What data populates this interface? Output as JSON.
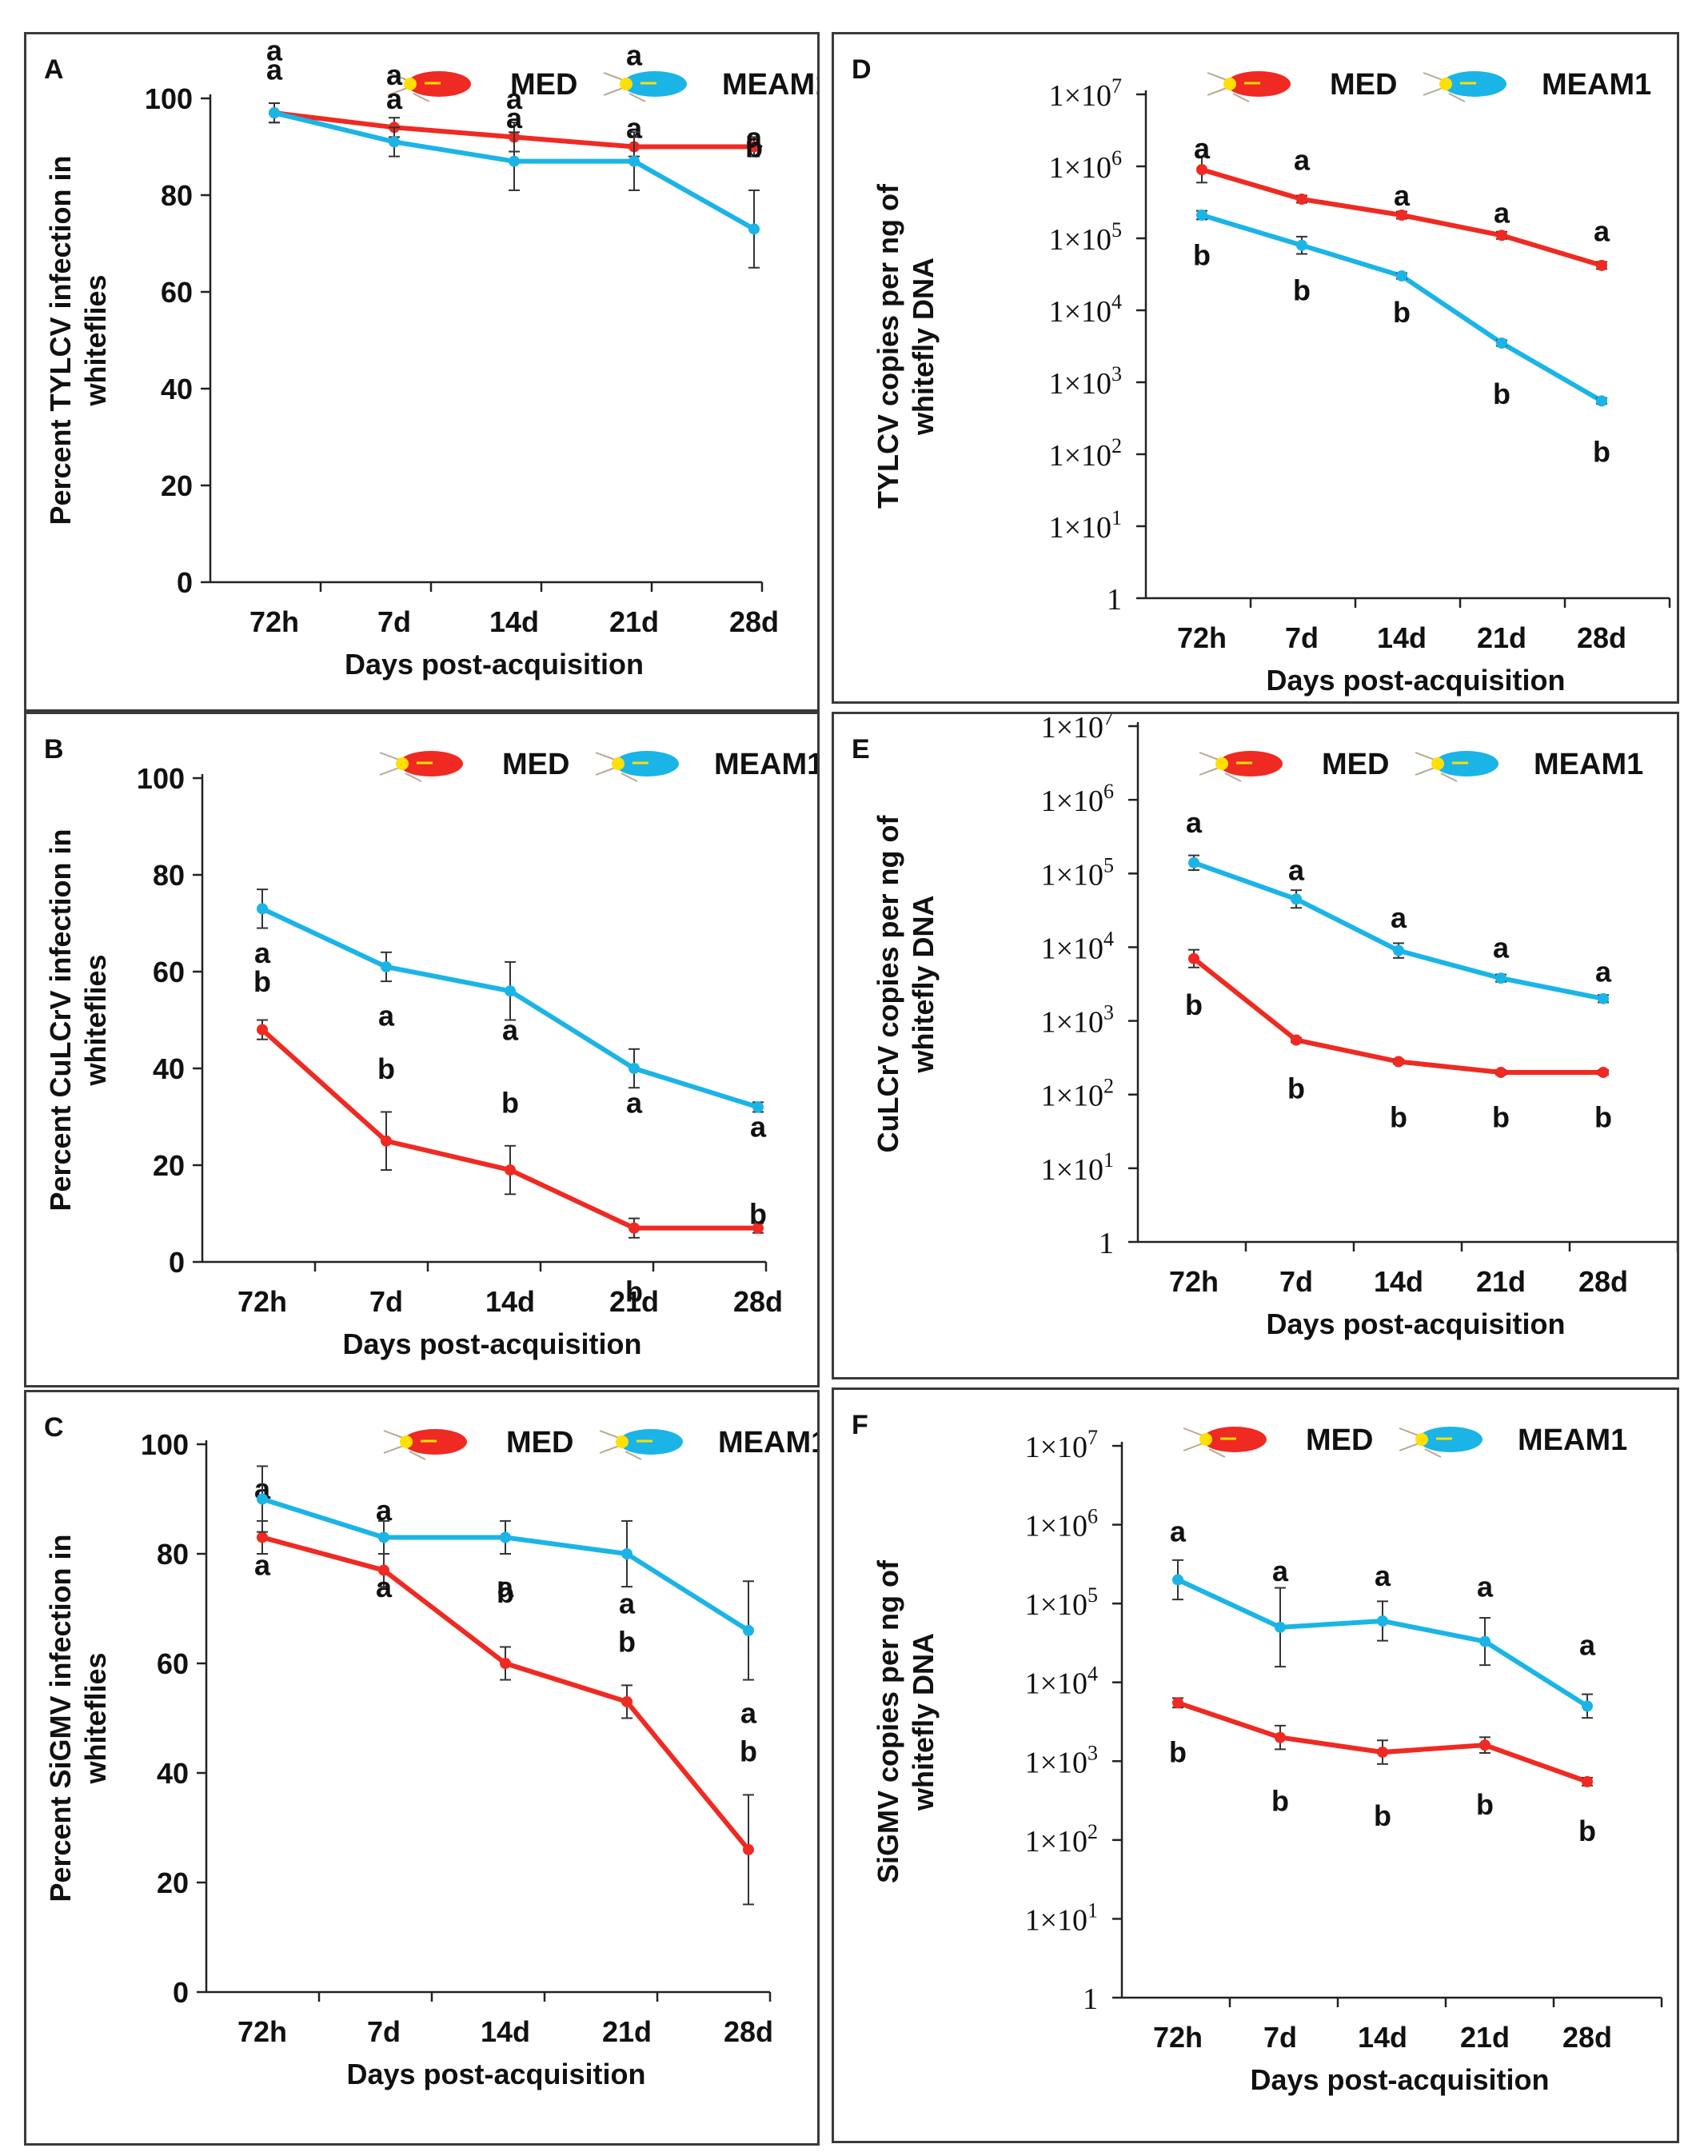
{
  "colors": {
    "med": "#ef2a22",
    "meam1": "#1bb4e6",
    "axis": "#222222",
    "text": "#111111",
    "bug_head": "#ffe000"
  },
  "legend": {
    "med": "MED",
    "meam1": "MEAM1"
  },
  "chart_data": [
    {
      "panel": "A",
      "type": "line",
      "scale": "linear",
      "title": "",
      "xlabel": "Days post-acquisition",
      "ylabel_lines": [
        "Percent  TYLCV infection in",
        "whiteflies"
      ],
      "ylim": [
        0,
        100
      ],
      "yticks": [
        "0",
        "20",
        "40",
        "60",
        "80",
        "100"
      ],
      "categories": [
        "72h",
        "7d",
        "14d",
        "21d",
        "28d"
      ],
      "series": [
        {
          "name": "MED",
          "values": [
            97,
            94,
            92,
            90,
            90
          ],
          "errors": [
            2,
            2,
            3,
            2,
            2
          ],
          "letters": [
            "a",
            "a",
            "a",
            "a",
            "a"
          ],
          "letter_offsets": [
            -9,
            -6,
            -4,
            -4,
            -2
          ]
        },
        {
          "name": "MEAM1",
          "values": [
            97,
            91,
            87,
            87,
            73
          ],
          "errors": [
            2,
            3,
            6,
            6,
            8
          ],
          "letters": [
            "a",
            "a",
            "a",
            "a",
            "b"
          ],
          "letter_offsets": [
            -13,
            -14,
            -13,
            -22,
            -17
          ]
        }
      ]
    },
    {
      "panel": "D",
      "type": "line",
      "scale": "log10",
      "title": "",
      "xlabel": "Days post-acquisition",
      "ylabel_lines": [
        "TYLCV copies per ng of",
        "whitefly DNA"
      ],
      "ylim_exp": [
        0,
        7
      ],
      "yticks": [
        "1",
        "1×10",
        "1×10",
        "1×10",
        "1×10",
        "1×10",
        "1×10",
        "1×10"
      ],
      "ytick_exps": [
        "",
        "1",
        "2",
        "3",
        "4",
        "5",
        "6",
        "7"
      ],
      "categories": [
        "72h",
        "7d",
        "14d",
        "21d",
        "28d"
      ],
      "series": [
        {
          "name": "MED",
          "values": [
            900000,
            350000,
            210000,
            110000,
            42000
          ],
          "errors": [
            0.18,
            0.05,
            0.05,
            0.05,
            0.05
          ],
          "letters": [
            "a",
            "a",
            "a",
            "a",
            "a"
          ],
          "letter_offsets": [
            0.3,
            0.55,
            0.28,
            0.32,
            0.48
          ]
        },
        {
          "name": "MEAM1",
          "values": [
            210000,
            80000,
            30000,
            3500,
            550
          ],
          "errors": [
            0.06,
            0.12,
            0.04,
            0.04,
            0.04
          ],
          "letters": [
            "b",
            "b",
            "b",
            "b",
            "b"
          ],
          "letter_offsets": [
            -0.55,
            -0.62,
            -0.5,
            -0.7,
            -0.7
          ]
        }
      ]
    },
    {
      "panel": "B",
      "type": "line",
      "scale": "linear",
      "title": "",
      "xlabel": "Days post-acquisition",
      "ylabel_lines": [
        "Percent CuLCrV infection in",
        "whiteflies"
      ],
      "ylim": [
        0,
        100
      ],
      "yticks": [
        "0",
        "20",
        "40",
        "60",
        "80",
        "100"
      ],
      "categories": [
        "72h",
        "7d",
        "14d",
        "21d",
        "28d"
      ],
      "series": [
        {
          "name": "MED",
          "values": [
            48,
            25,
            19,
            7,
            7
          ],
          "errors": [
            2,
            6,
            5,
            2,
            1
          ],
          "letters": [
            "b",
            "b",
            "b",
            "b",
            "b"
          ],
          "letter_offsets": [
            -10,
            -15,
            -14,
            13,
            -3
          ]
        },
        {
          "name": "MEAM1",
          "values": [
            73,
            61,
            56,
            40,
            32
          ],
          "errors": [
            4,
            3,
            6,
            4,
            1
          ],
          "letters": [
            "a",
            "a",
            "a",
            "a",
            "a"
          ],
          "letter_offsets": [
            9,
            10,
            8,
            7,
            4
          ]
        }
      ]
    },
    {
      "panel": "E",
      "type": "line",
      "scale": "log10",
      "title": "",
      "xlabel": "Days post-acquisition",
      "ylabel_lines": [
        "CuLCrV copies per ng of",
        "whitefly DNA"
      ],
      "ylim_exp": [
        0,
        7
      ],
      "yticks": [
        "1",
        "1×10",
        "1×10",
        "1×10",
        "1×10",
        "1×10",
        "1×10",
        "1×10"
      ],
      "ytick_exps": [
        "",
        "1",
        "2",
        "3",
        "4",
        "5",
        "6",
        "7"
      ],
      "categories": [
        "72h",
        "7d",
        "14d",
        "21d",
        "28d"
      ],
      "series": [
        {
          "name": "MED",
          "values": [
            7000,
            550,
            280,
            200,
            200
          ],
          "errors": [
            0.12,
            0.03,
            0.03,
            0.03,
            0.03
          ],
          "letters": [
            "b",
            "b",
            "b",
            "b",
            "b"
          ],
          "letter_offsets": [
            -0.62,
            -0.65,
            -0.75,
            -0.6,
            -0.6
          ]
        },
        {
          "name": "MEAM1",
          "values": [
            140000,
            45000,
            9000,
            3800,
            2000
          ],
          "errors": [
            0.1,
            0.12,
            0.1,
            0.05,
            0.05
          ],
          "letters": [
            "a",
            "a",
            "a",
            "a",
            "a"
          ],
          "letter_offsets": [
            0.55,
            0.4,
            0.45,
            0.42,
            0.37
          ]
        }
      ]
    },
    {
      "panel": "C",
      "type": "line",
      "scale": "linear",
      "title": "",
      "xlabel": "Days post-acquisition",
      "ylabel_lines": [
        "Percent SiGMV infection in",
        "whiteflies"
      ],
      "ylim": [
        0,
        100
      ],
      "yticks": [
        "0",
        "20",
        "40",
        "60",
        "80",
        "100"
      ],
      "categories": [
        "72h",
        "7d",
        "14d",
        "21d",
        "28d"
      ],
      "series": [
        {
          "name": "MED",
          "values": [
            83,
            77,
            60,
            53,
            26
          ],
          "errors": [
            3,
            3,
            3,
            3,
            10
          ],
          "letters": [
            "a",
            "a",
            "b",
            "b",
            "b"
          ],
          "letter_offsets": [
            -9,
            -11,
            -13,
            -11,
            -18
          ]
        },
        {
          "name": "MEAM1",
          "values": [
            90,
            83,
            83,
            80,
            66
          ],
          "errors": [
            6,
            3,
            3,
            6,
            9
          ],
          "letters": [
            "a",
            "a",
            "a",
            "a",
            "a"
          ],
          "letter_offsets": [
            12,
            9,
            9,
            9,
            15
          ]
        }
      ]
    },
    {
      "panel": "F",
      "type": "line",
      "scale": "log10",
      "title": "",
      "xlabel": "Days post-acquisition",
      "ylabel_lines": [
        "SiGMV copies per ng of",
        "whitefly DNA"
      ],
      "ylim_exp": [
        0,
        7
      ],
      "yticks": [
        "1",
        "1×10",
        "1×10",
        "1×10",
        "1×10",
        "1×10",
        "1×10",
        "1×10"
      ],
      "ytick_exps": [
        "",
        "1",
        "2",
        "3",
        "4",
        "5",
        "6",
        "7"
      ],
      "categories": [
        "72h",
        "7d",
        "14d",
        "21d",
        "28d"
      ],
      "series": [
        {
          "name": "MED",
          "values": [
            5500,
            2000,
            1300,
            1600,
            550
          ],
          "errors": [
            0.06,
            0.15,
            0.15,
            0.1,
            0.05
          ],
          "letters": [
            "b",
            "b",
            "b",
            "b",
            "b"
          ],
          "letter_offsets": [
            -0.62,
            -0.8,
            -0.8,
            -0.75,
            -0.62
          ]
        },
        {
          "name": "MEAM1",
          "values": [
            200000,
            50000,
            60000,
            33000,
            5000
          ],
          "errors": [
            0.25,
            0.5,
            0.25,
            0.3,
            0.15
          ],
          "letters": [
            "a",
            "a",
            "a",
            "a",
            "a"
          ],
          "letter_offsets": [
            0.62,
            0.72,
            0.58,
            0.7,
            0.78
          ]
        }
      ]
    }
  ]
}
